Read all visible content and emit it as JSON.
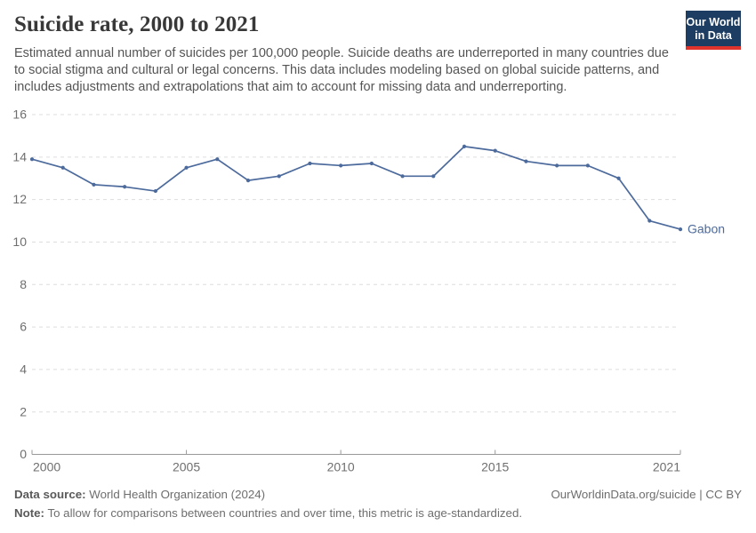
{
  "header": {
    "title": "Suicide rate, 2000 to 2021",
    "subtitle": "Estimated annual number of suicides per 100,000 people. Suicide deaths are underreported in many countries due to social stigma and cultural or legal concerns. This data includes modeling based on global suicide patterns, and includes adjustments and extrapolations that aim to account for missing data and underreporting.",
    "logo": {
      "line1": "Our World",
      "line2": "in Data"
    }
  },
  "chart_data": {
    "type": "line",
    "title": "Suicide rate, 2000 to 2021",
    "x": [
      2000,
      2001,
      2002,
      2003,
      2004,
      2005,
      2006,
      2007,
      2008,
      2009,
      2010,
      2011,
      2012,
      2013,
      2014,
      2015,
      2016,
      2017,
      2018,
      2019,
      2020,
      2021
    ],
    "series": [
      {
        "name": "Gabon",
        "values": [
          13.9,
          13.5,
          12.7,
          12.6,
          12.4,
          13.5,
          13.9,
          12.9,
          13.1,
          13.7,
          13.6,
          13.7,
          13.1,
          13.1,
          14.5,
          14.3,
          13.8,
          13.6,
          13.6,
          13.0,
          11.0,
          10.6
        ]
      }
    ],
    "entity_label": "Gabon",
    "ylim": [
      0,
      16
    ],
    "yticks": [
      0,
      2,
      4,
      6,
      8,
      10,
      12,
      14,
      16
    ],
    "xticks": [
      2000,
      2005,
      2010,
      2015,
      2021
    ],
    "grid": "horizontal-dashed",
    "legend_position": "end-of-line-label",
    "line_color": "#4C6A9C"
  },
  "footer": {
    "datasource_label": "Data source:",
    "datasource_value": " World Health Organization (2024)",
    "note_label": "Note:",
    "note_value": " To allow for comparisons between countries and over time, this metric is age-standardized.",
    "license": "OurWorldinData.org/suicide | CC BY"
  },
  "colors": {
    "line": "#4C6A9C",
    "gridline": "#dddddd",
    "axis": "#999999",
    "tick_label": "#6f6f6f",
    "title": "#383838",
    "subtitle": "#555555",
    "logo_bg": "#1d3d63",
    "logo_stripe": "#e0332c"
  }
}
